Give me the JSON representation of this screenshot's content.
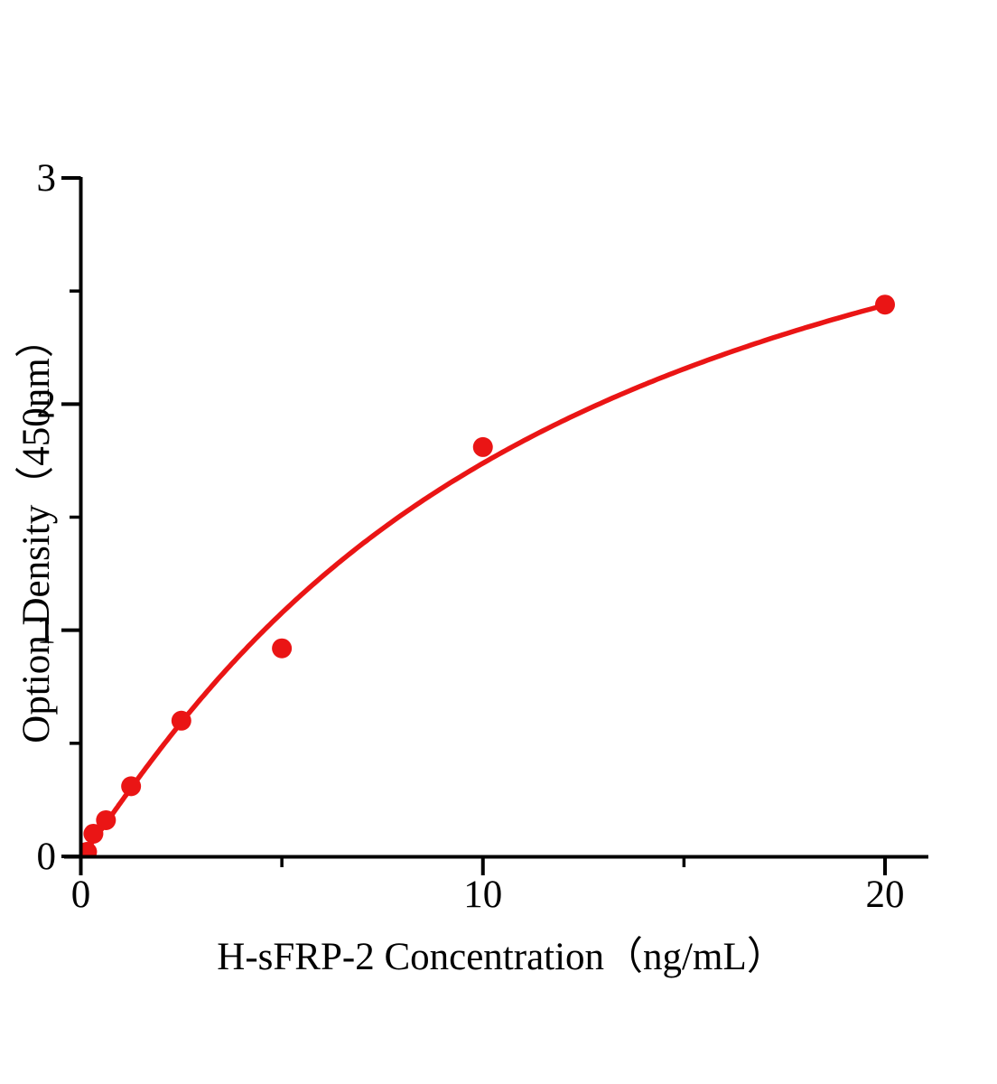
{
  "figure": {
    "background": "#ffffff",
    "description": "ELISA standard curve plot, red fitted curve with red circular data points on white background"
  },
  "chart_data": {
    "type": "scatter",
    "title": "",
    "xlabel": "H-sFRP-2 Concentration（ng/mL）",
    "ylabel": "Option Density（450nm）",
    "xlim": [
      0,
      21
    ],
    "ylim": [
      0,
      3
    ],
    "x_major_ticks": [
      0,
      10,
      20
    ],
    "x_minor_ticks": [
      5,
      15
    ],
    "y_major_ticks": [
      0,
      1,
      2,
      3
    ],
    "y_minor_ticks": [
      0.5,
      1.5,
      2.5
    ],
    "grid": false,
    "legend": false,
    "points": [
      {
        "x": 0.156,
        "y": 0.02
      },
      {
        "x": 0.3125,
        "y": 0.1
      },
      {
        "x": 0.625,
        "y": 0.16
      },
      {
        "x": 1.25,
        "y": 0.31
      },
      {
        "x": 2.5,
        "y": 0.6
      },
      {
        "x": 5,
        "y": 0.92
      },
      {
        "x": 10,
        "y": 1.81
      },
      {
        "x": 20,
        "y": 2.44
      }
    ],
    "fit_curve": {
      "model": "4PL",
      "a": 0,
      "d": 3.76,
      "c": 11.47,
      "b": 1.1,
      "x_start": 0.1,
      "x_end": 20
    },
    "series_color": "#ea1515",
    "axis_color": "#000000",
    "marker": "circle",
    "marker_radius_px": 11
  }
}
